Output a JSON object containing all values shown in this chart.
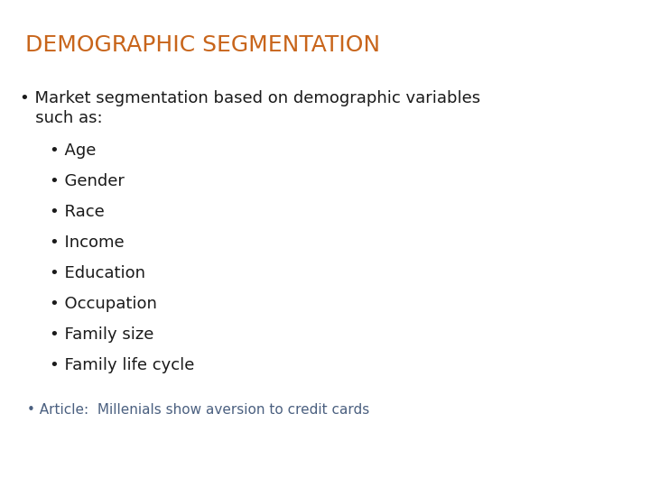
{
  "title": "DEMOGRAPHIC SEGMENTATION",
  "title_color": "#C8651B",
  "title_fontsize": 18,
  "background_color": "#FFFFFF",
  "main_bullet_line1": "• Market segmentation based on demographic variables",
  "main_bullet_line2": "   such as:",
  "main_bullet_color": "#1A1A1A",
  "main_bullet_fontsize": 13,
  "sub_items": [
    "Age",
    "Gender",
    "Race",
    "Income",
    "Education",
    "Occupation",
    "Family size",
    "Family life cycle"
  ],
  "sub_items_color": "#1A1A1A",
  "sub_items_fontsize": 13,
  "article_bullet": "• ",
  "article_text": "Article:  Millenials show aversion to credit cards",
  "article_color": "#4B6080",
  "article_fontsize": 11
}
